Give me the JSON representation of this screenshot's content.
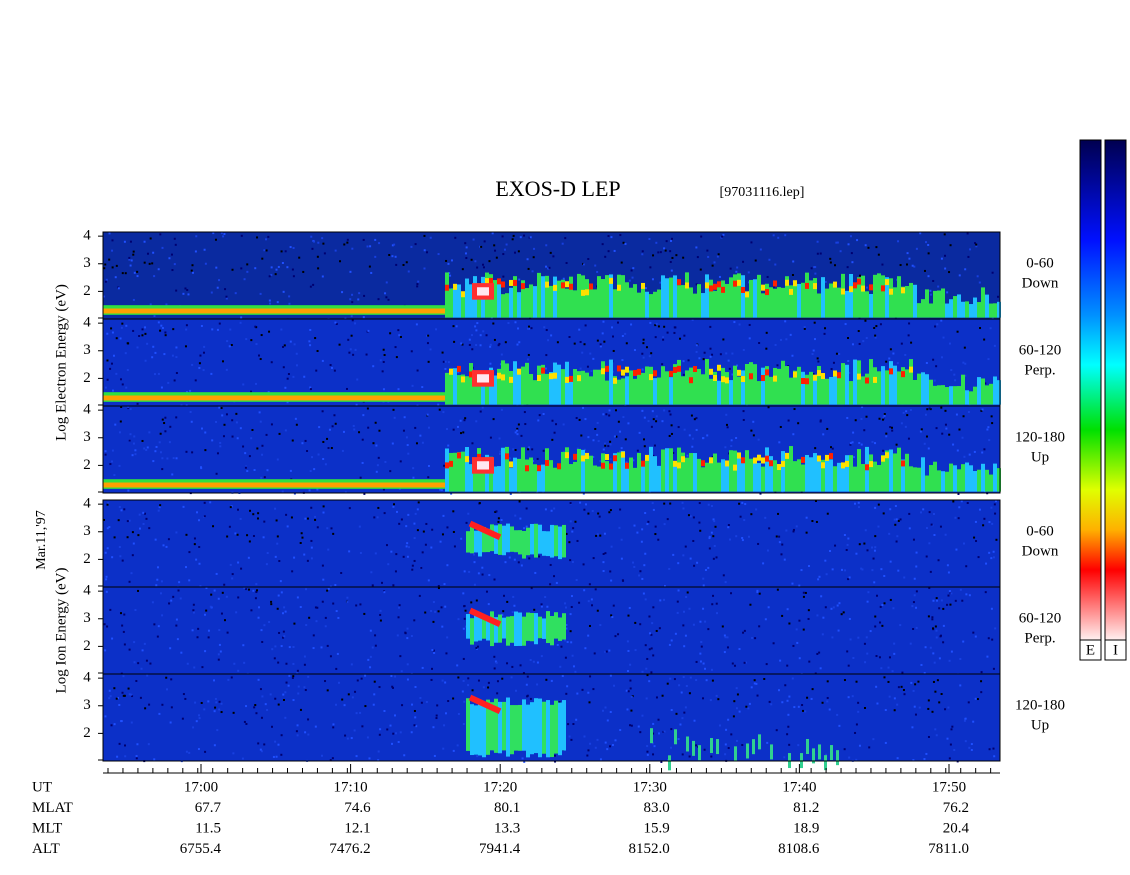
{
  "title": "EXOS-D LEP",
  "file": "[97031116.lep]",
  "date": "Mar.11,'97",
  "chart_data": {
    "type": "spectrogram",
    "ylim": [
      1,
      4.15
    ],
    "yticks": [
      2,
      3,
      4
    ],
    "groups": [
      {
        "ylabel": "Log   Electron   Energy (eV)",
        "panels": [
          {
            "label": [
              "0-60",
              "Down"
            ]
          },
          {
            "label": [
              "60-120",
              "Perp."
            ]
          },
          {
            "label": [
              "120-180",
              "Up"
            ]
          }
        ]
      },
      {
        "ylabel": "Log   Ion   Energy (eV)",
        "panels": [
          {
            "label": [
              "0-60",
              "Down"
            ]
          },
          {
            "label": [
              "60-120",
              "Perp."
            ]
          },
          {
            "label": [
              "120-180",
              "Up"
            ]
          }
        ]
      }
    ],
    "colorbars": [
      "E",
      "I"
    ]
  },
  "orbit": {
    "rows": [
      {
        "name": "UT",
        "values": [
          "17:00",
          "17:10",
          "17:20",
          "17:30",
          "17:40",
          "17:50"
        ]
      },
      {
        "name": "MLAT",
        "values": [
          "67.7",
          "74.6",
          "80.1",
          "83.0",
          "81.2",
          "76.2"
        ]
      },
      {
        "name": "MLT",
        "values": [
          "11.5",
          "12.1",
          "13.3",
          "15.9",
          "18.9",
          "20.4"
        ]
      },
      {
        "name": "ALT",
        "values": [
          "6755.4",
          "7476.2",
          "7941.4",
          "8152.0",
          "8108.6",
          "7811.0"
        ]
      }
    ]
  }
}
